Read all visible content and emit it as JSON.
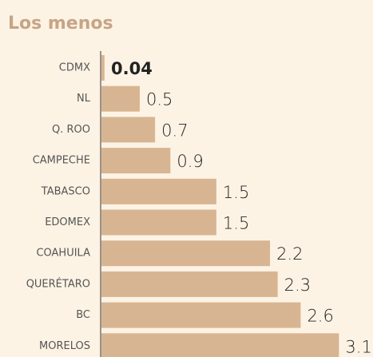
{
  "chart_data": {
    "type": "bar",
    "orientation": "horizontal",
    "title": "Los menos",
    "categories": [
      "CDMX",
      "NL",
      "Q. ROO",
      "CAMPECHE",
      "TABASCO",
      "EDOMEX",
      "COAHUILA",
      "QUERÉTARO",
      "BC",
      "MORELOS"
    ],
    "values": [
      0.04,
      0.5,
      0.7,
      0.9,
      1.5,
      1.5,
      2.2,
      2.3,
      2.6,
      3.1
    ],
    "color": "#d8b592",
    "xlim": [
      0,
      3.2
    ]
  }
}
